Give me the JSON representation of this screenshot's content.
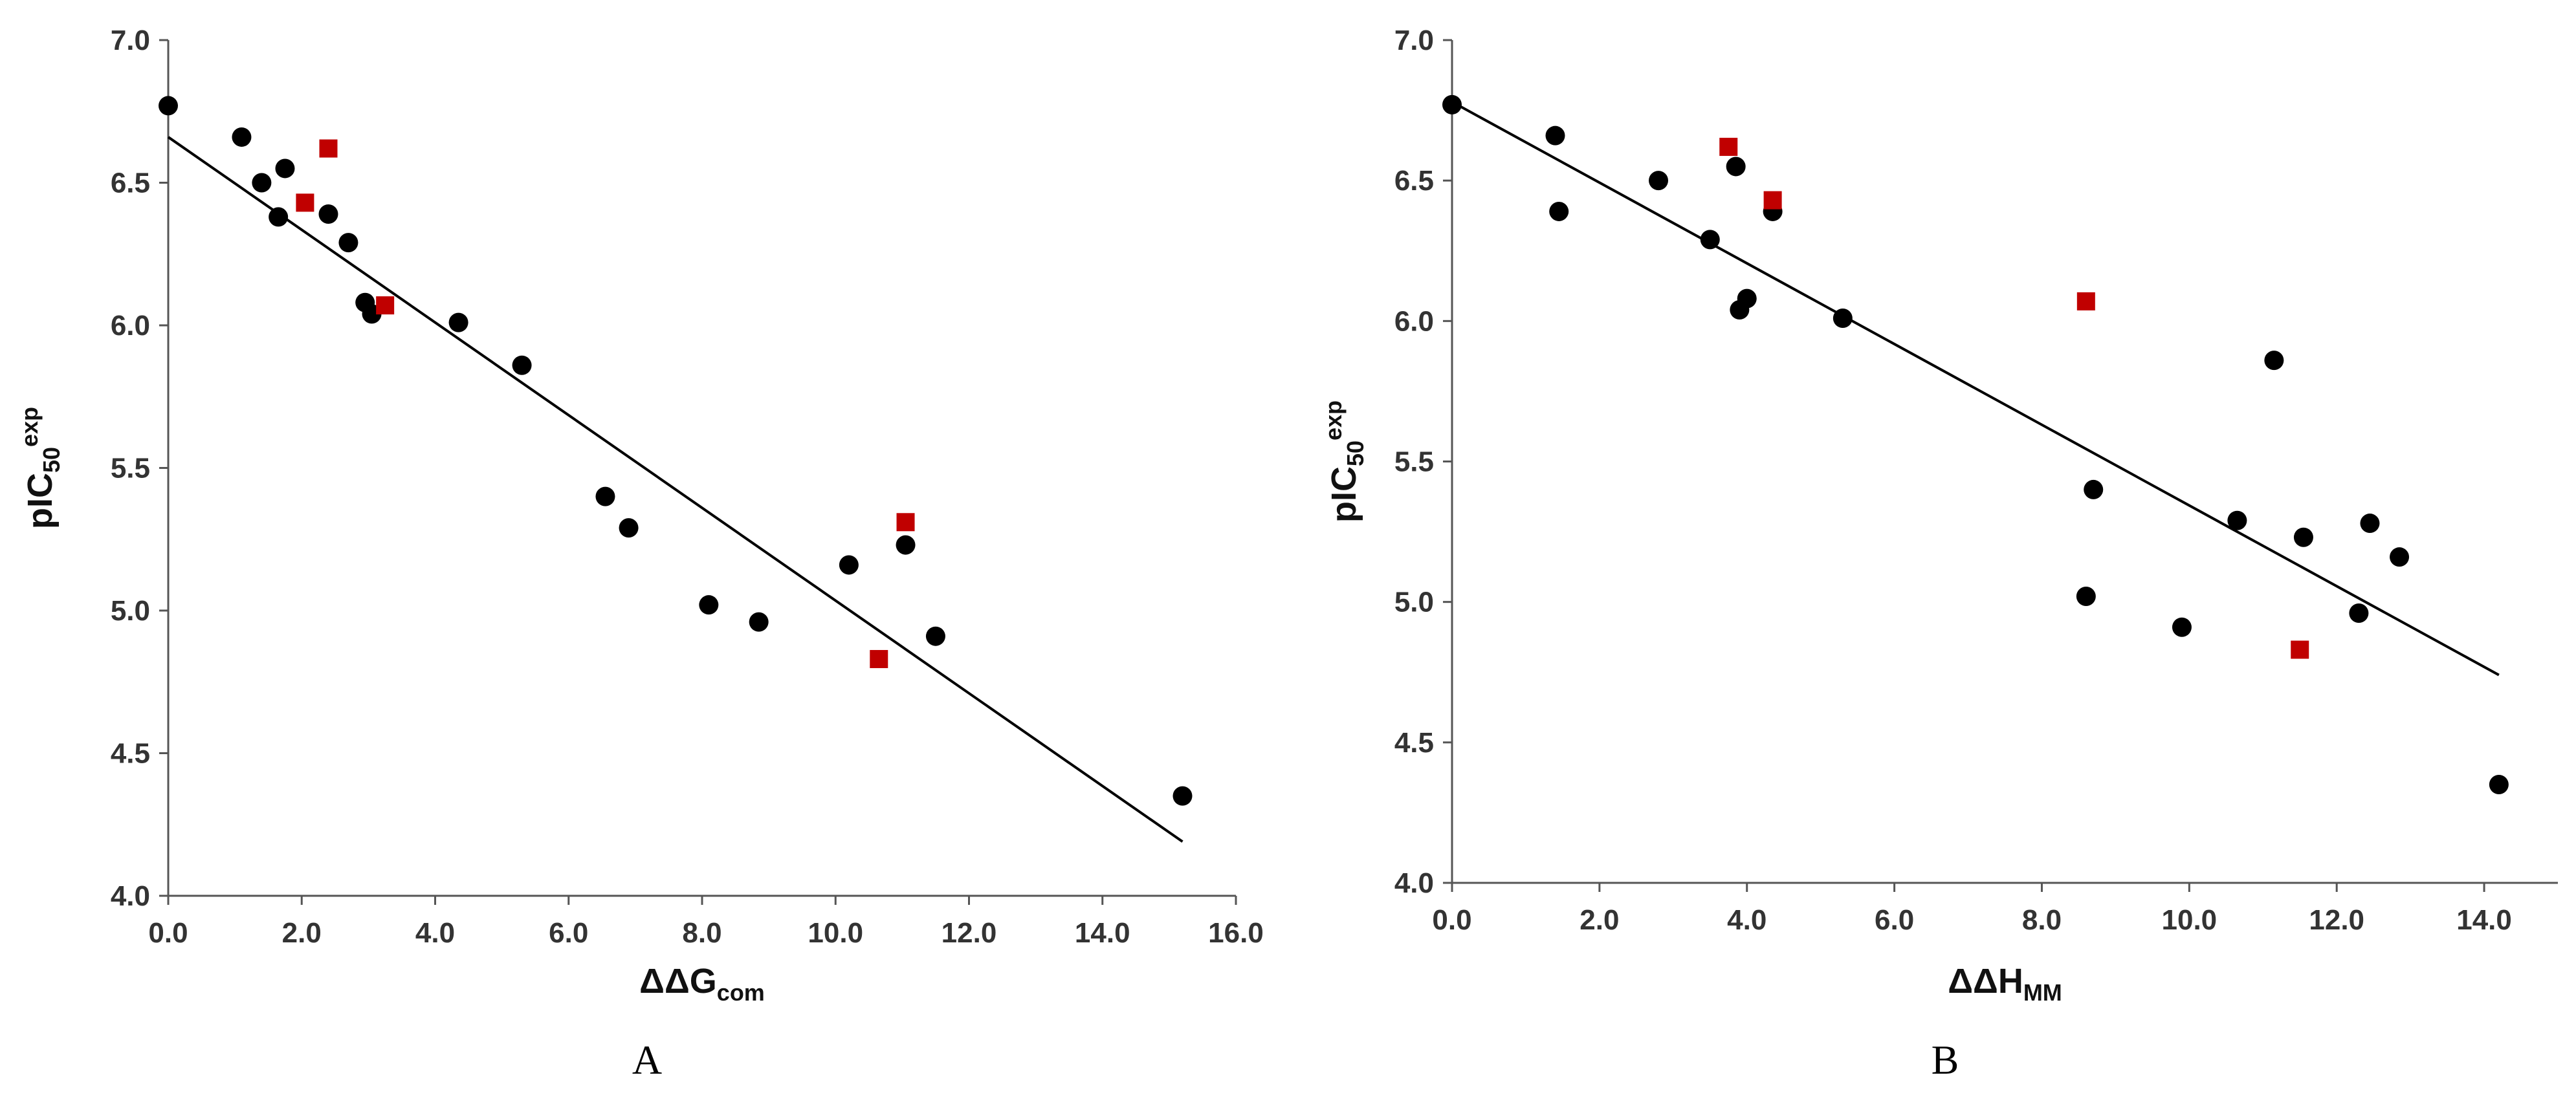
{
  "chart_data": [
    {
      "type": "scatter",
      "panel_label": "A",
      "xlabel": {
        "main": "ΔΔG",
        "sub": "com",
        "sup": ""
      },
      "ylabel": {
        "main": "pIC",
        "sub": "50",
        "sup": "exp"
      },
      "xlim": [
        0,
        16
      ],
      "ylim": [
        4,
        7
      ],
      "xticks": [
        "0.0",
        "2.0",
        "4.0",
        "6.0",
        "8.0",
        "10.0",
        "12.0",
        "14.0",
        "16.0"
      ],
      "yticks": [
        "4.0",
        "4.5",
        "5.0",
        "5.5",
        "6.0",
        "6.5",
        "7.0"
      ],
      "grid": false,
      "trendline": {
        "x1": 0,
        "y1": 6.66,
        "x2": 15.2,
        "y2": 4.19,
        "color": "#000000"
      },
      "series": [
        {
          "marker": "circle",
          "color": "#000000",
          "points": [
            [
              0.0,
              6.77
            ],
            [
              1.1,
              6.66
            ],
            [
              1.4,
              6.5
            ],
            [
              1.65,
              6.38
            ],
            [
              1.75,
              6.55
            ],
            [
              2.4,
              6.39
            ],
            [
              2.7,
              6.29
            ],
            [
              2.95,
              6.08
            ],
            [
              3.05,
              6.04
            ],
            [
              4.35,
              6.01
            ],
            [
              5.3,
              5.86
            ],
            [
              6.55,
              5.4
            ],
            [
              6.9,
              5.29
            ],
            [
              8.1,
              5.02
            ],
            [
              8.85,
              4.96
            ],
            [
              10.2,
              5.16
            ],
            [
              11.05,
              5.23
            ],
            [
              11.5,
              4.91
            ],
            [
              15.2,
              4.35
            ]
          ]
        },
        {
          "marker": "square",
          "color": "#c00000",
          "points": [
            [
              2.05,
              6.43
            ],
            [
              2.4,
              6.62
            ],
            [
              3.25,
              6.07
            ],
            [
              10.65,
              4.83
            ],
            [
              11.05,
              5.31
            ]
          ]
        }
      ]
    },
    {
      "type": "scatter",
      "panel_label": "B",
      "xlabel": {
        "main": "ΔΔH",
        "sub": "MM",
        "sup": ""
      },
      "ylabel": {
        "main": "pIC",
        "sub": "50",
        "sup": "exp"
      },
      "xlim": [
        0,
        15
      ],
      "ylim": [
        4,
        7
      ],
      "xticks": [
        "0.0",
        "2.0",
        "4.0",
        "6.0",
        "8.0",
        "10.0",
        "12.0",
        "14.0"
      ],
      "yticks": [
        "4.0",
        "4.5",
        "5.0",
        "5.5",
        "6.0",
        "6.5",
        "7.0"
      ],
      "grid": false,
      "trendline": {
        "x1": 0,
        "y1": 6.78,
        "x2": 14.2,
        "y2": 4.74,
        "color": "#000000"
      },
      "series": [
        {
          "marker": "circle",
          "color": "#000000",
          "points": [
            [
              0.0,
              6.77
            ],
            [
              1.4,
              6.66
            ],
            [
              1.45,
              6.39
            ],
            [
              2.8,
              6.5
            ],
            [
              3.5,
              6.29
            ],
            [
              3.85,
              6.55
            ],
            [
              3.9,
              6.04
            ],
            [
              4.0,
              6.08
            ],
            [
              4.35,
              6.39
            ],
            [
              5.3,
              6.01
            ],
            [
              8.6,
              5.02
            ],
            [
              8.7,
              5.4
            ],
            [
              9.9,
              4.91
            ],
            [
              10.65,
              5.29
            ],
            [
              11.15,
              5.86
            ],
            [
              11.55,
              5.23
            ],
            [
              12.3,
              4.96
            ],
            [
              12.45,
              5.28
            ],
            [
              12.85,
              5.16
            ],
            [
              14.2,
              4.35
            ]
          ]
        },
        {
          "marker": "square",
          "color": "#c00000",
          "points": [
            [
              3.75,
              6.62
            ],
            [
              4.35,
              6.43
            ],
            [
              8.6,
              6.07
            ],
            [
              11.5,
              4.83
            ]
          ]
        }
      ]
    }
  ]
}
